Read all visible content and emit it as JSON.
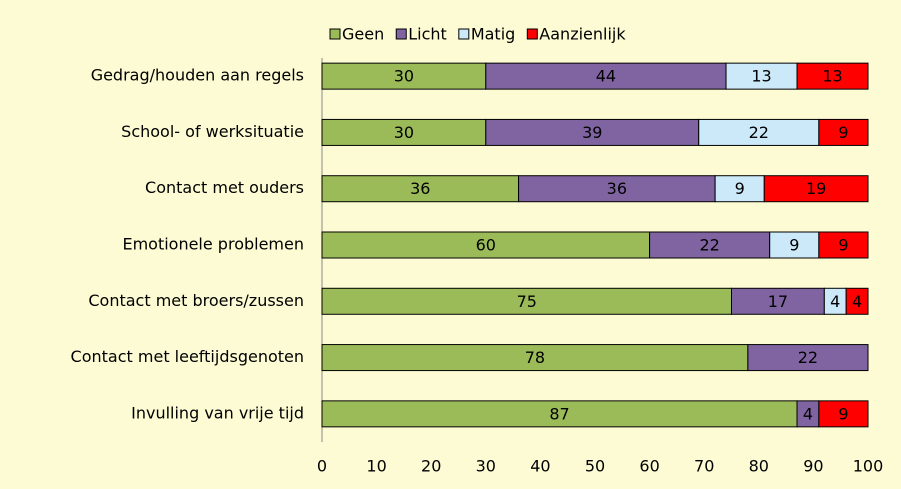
{
  "chart_data": {
    "type": "stacked-bar-horizontal",
    "categories": [
      "Gedrag/houden aan regels",
      "School- of werksituatie",
      "Contact met ouders",
      "Emotionele problemen",
      "Contact met broers/zussen",
      "Contact met leeftijdsgenoten",
      "Invulling van vrije tijd"
    ],
    "series": [
      {
        "name": "Geen",
        "color": "#9bbb59",
        "values": [
          30,
          30,
          36,
          60,
          75,
          78,
          87
        ]
      },
      {
        "name": "Licht",
        "color": "#8064a2",
        "values": [
          44,
          39,
          36,
          22,
          17,
          22,
          4
        ]
      },
      {
        "name": "Matig",
        "color": "#cce9fa",
        "values": [
          13,
          22,
          9,
          9,
          4,
          null,
          null
        ]
      },
      {
        "name": "Aanzienlijk",
        "color": "#ff0000",
        "values": [
          13,
          9,
          19,
          9,
          4,
          null,
          9
        ]
      }
    ],
    "xlim": [
      0,
      100
    ],
    "xticks": [
      0,
      10,
      20,
      30,
      40,
      50,
      60,
      70,
      80,
      90,
      100
    ],
    "legend": "top"
  }
}
